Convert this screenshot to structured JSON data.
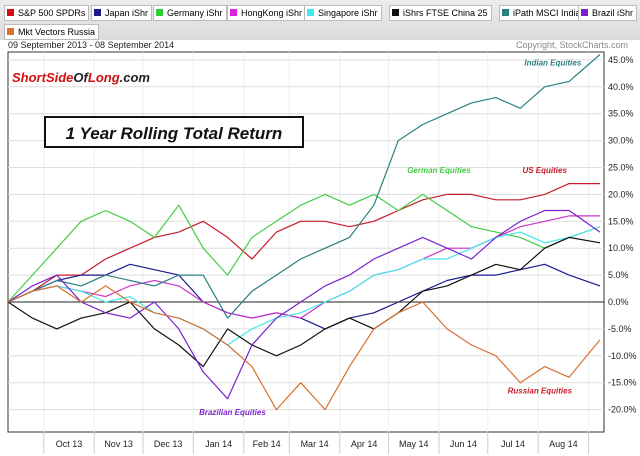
{
  "legend": [
    {
      "label": "S&P 500 SPDRs",
      "color": "#d01010"
    },
    {
      "label": "Japan iShr",
      "color": "#1a1a90"
    },
    {
      "label": "Germany iShr",
      "color": "#33cc33"
    },
    {
      "label": "HongKong iShr",
      "color": "#dd22dd"
    },
    {
      "label": "Singapore iShr",
      "color": "#44e8e8"
    },
    {
      "label": "iShrs FTSE China 25",
      "color": "#111111"
    },
    {
      "label": "iPath MSCI India",
      "color": "#2a8080"
    },
    {
      "label": "Brazil iShr",
      "color": "#7a22cc"
    },
    {
      "label": "Mkt Vectors Russia",
      "color": "#e07030"
    }
  ],
  "date_range": "09 September 2013 - 08 September 2014",
  "copyright": "Copyright, StockCharts.com",
  "logo": "ShortSideOfLong.com",
  "chart_data": {
    "type": "line",
    "title": "1 Year Rolling Total Return",
    "x_ticks": [
      "Oct 13",
      "Nov 13",
      "Dec 13",
      "Jan 14",
      "Feb 14",
      "Mar 14",
      "Apr 14",
      "May 14",
      "Jun 14",
      "Jul 14",
      "Aug 14"
    ],
    "y_ticks": [
      "45.0%",
      "40.0%",
      "35.0%",
      "30.0%",
      "25.0%",
      "20.0%",
      "15.0%",
      "10.0%",
      "5.0%",
      "0.0%",
      "-5.0%",
      "-10.0%",
      "-15.0%",
      "-20.0%"
    ],
    "ylim": [
      -23,
      47
    ],
    "xlim": [
      "2013-09-09",
      "2014-09-08"
    ],
    "grid": true,
    "x": [
      "2013-09-09",
      "2013-09-24",
      "2013-10-09",
      "2013-10-24",
      "2013-11-08",
      "2013-11-23",
      "2013-12-08",
      "2013-12-23",
      "2014-01-07",
      "2014-01-22",
      "2014-02-06",
      "2014-02-21",
      "2014-03-08",
      "2014-03-23",
      "2014-04-07",
      "2014-04-22",
      "2014-05-07",
      "2014-05-22",
      "2014-06-06",
      "2014-06-21",
      "2014-07-06",
      "2014-07-21",
      "2014-08-05",
      "2014-08-20",
      "2014-09-08"
    ],
    "series": [
      {
        "name": "S&P 500 SPDRs",
        "color": "#c81a2a",
        "values": [
          0,
          2,
          5,
          5,
          8,
          10,
          12,
          13,
          15,
          12,
          8,
          13,
          15,
          15,
          14,
          15,
          17,
          19,
          20,
          20,
          19,
          19,
          20,
          22,
          22
        ]
      },
      {
        "name": "Japan iShr",
        "color": "#1a1a90",
        "values": [
          0,
          2,
          4,
          5,
          5,
          7,
          6,
          5,
          0,
          -2,
          -3,
          -2,
          -3,
          -5,
          -3,
          -2,
          0,
          2,
          4,
          5,
          5,
          6,
          7,
          5,
          3
        ]
      },
      {
        "name": "Germany iShr",
        "color": "#44cc44",
        "values": [
          0,
          5,
          10,
          15,
          17,
          15,
          12,
          18,
          10,
          5,
          12,
          15,
          18,
          20,
          18,
          20,
          17,
          20,
          17,
          14,
          13,
          12,
          10,
          12,
          14
        ]
      },
      {
        "name": "HongKong iShr",
        "color": "#cc33cc",
        "values": [
          0,
          2,
          3,
          2,
          1,
          3,
          4,
          3,
          0,
          -2,
          -3,
          -2,
          -3,
          0,
          2,
          5,
          6,
          8,
          10,
          10,
          12,
          14,
          15,
          16,
          16
        ]
      },
      {
        "name": "Singapore iShr",
        "color": "#44e8e8",
        "values": [
          0,
          2,
          3,
          2,
          0,
          1,
          -2,
          -3,
          -5,
          -8,
          -5,
          -3,
          -2,
          0,
          2,
          5,
          6,
          8,
          8,
          10,
          12,
          13,
          11,
          12,
          14
        ]
      },
      {
        "name": "iShrs FTSE China 25",
        "color": "#111111",
        "values": [
          0,
          -3,
          -5,
          -3,
          -2,
          0,
          -5,
          -8,
          -12,
          -5,
          -8,
          -10,
          -8,
          -5,
          -3,
          -5,
          -2,
          2,
          3,
          5,
          7,
          6,
          10,
          12,
          11
        ]
      },
      {
        "name": "iPath MSCI India",
        "color": "#2a8080",
        "values": [
          0,
          2,
          4,
          3,
          5,
          4,
          3,
          5,
          5,
          -3,
          2,
          5,
          8,
          10,
          12,
          18,
          30,
          33,
          35,
          37,
          38,
          36,
          40,
          41,
          46
        ]
      },
      {
        "name": "Brazil iShr",
        "color": "#7a22cc",
        "values": [
          0,
          3,
          5,
          0,
          -2,
          -3,
          0,
          -5,
          -13,
          -18,
          -8,
          -3,
          0,
          3,
          5,
          8,
          10,
          12,
          10,
          8,
          12,
          15,
          17,
          17,
          13
        ]
      },
      {
        "name": "Mkt Vectors Russia",
        "color": "#d87030",
        "values": [
          0,
          2,
          3,
          0,
          3,
          0,
          -2,
          -3,
          -5,
          -8,
          -12,
          -20,
          -15,
          -20,
          -12,
          -5,
          -2,
          0,
          -5,
          -8,
          -10,
          -15,
          -12,
          -14,
          -7
        ]
      }
    ],
    "annotations": [
      {
        "text": "Indian Equities",
        "color": "#2a8080",
        "date": "2014-08-10",
        "value": 44
      },
      {
        "text": "German Equities",
        "color": "#44cc44",
        "date": "2014-06-01",
        "value": 24
      },
      {
        "text": "US Equities",
        "color": "#c81a2a",
        "date": "2014-08-05",
        "value": 24
      },
      {
        "text": "Brazilian Equities",
        "color": "#7a22cc",
        "date": "2014-01-25",
        "value": -21
      },
      {
        "text": "Russian Equities",
        "color": "#c81a2a",
        "date": "2014-08-02",
        "value": -17
      }
    ]
  }
}
